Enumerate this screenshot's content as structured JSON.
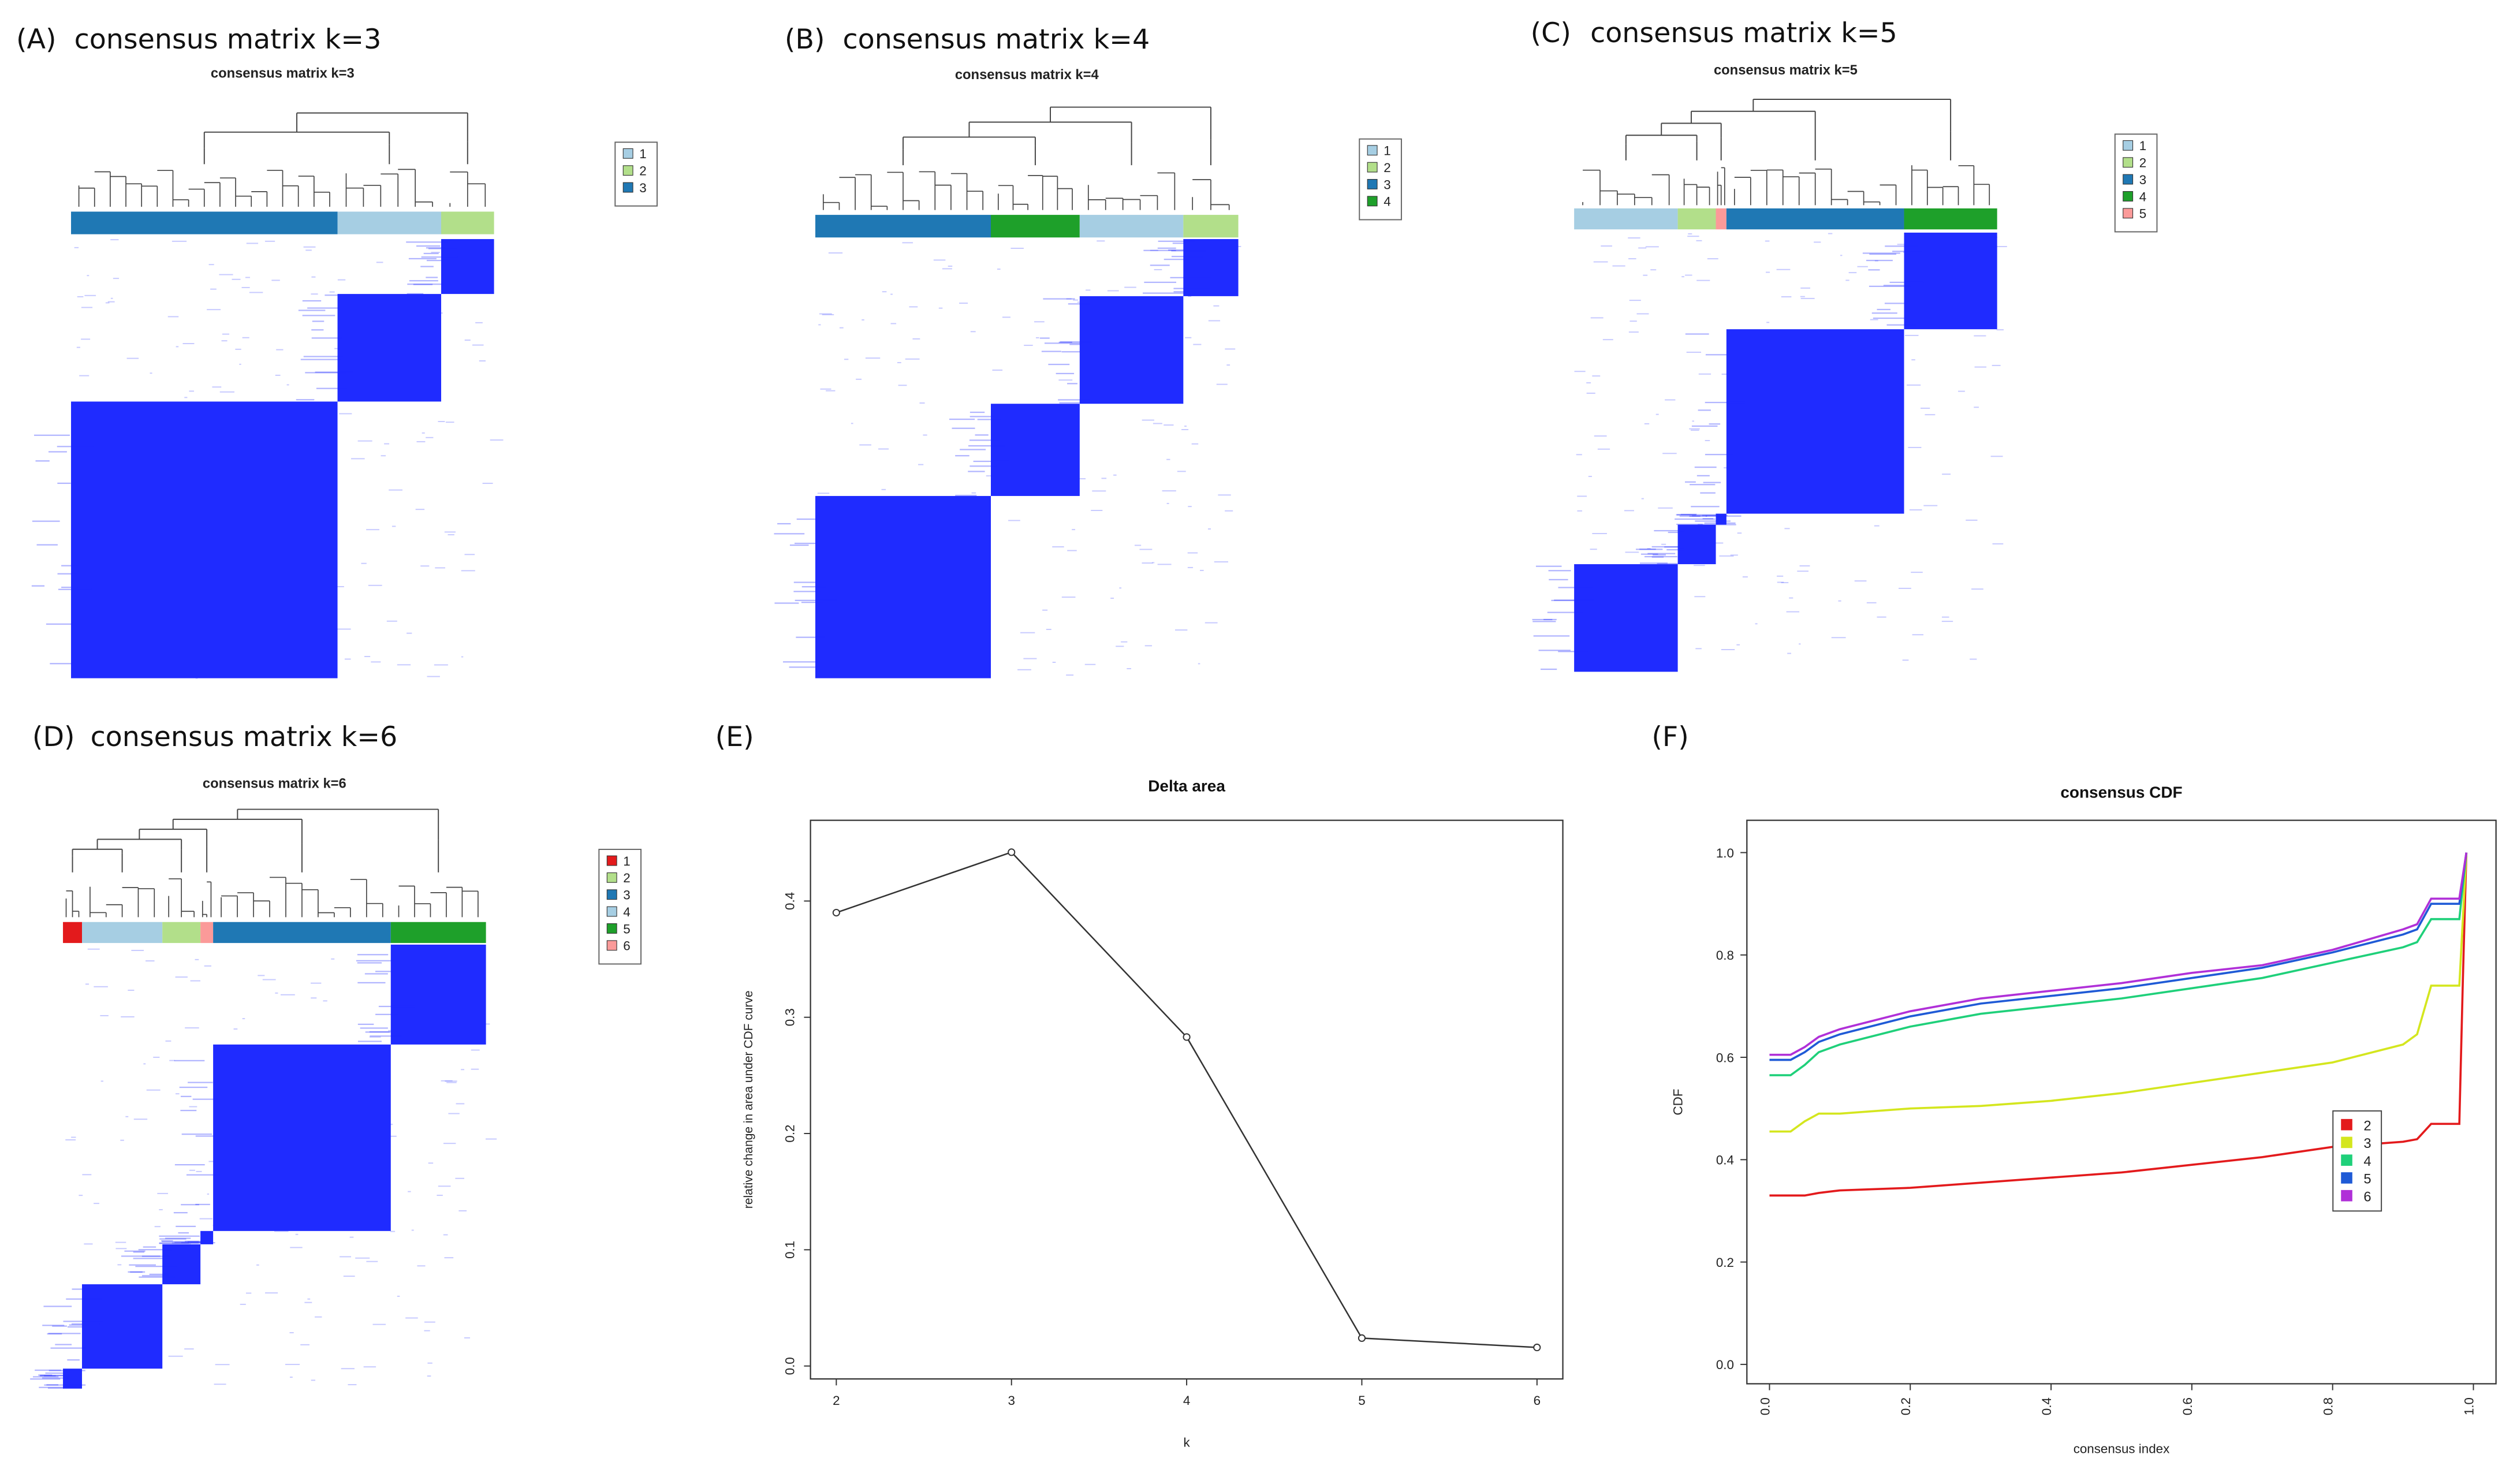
{
  "figure": {
    "panels": {
      "A": {
        "tag": "(A)",
        "heading": "consensus matrix k=3",
        "inner_title": "consensus matrix k=3"
      },
      "B": {
        "tag": "(B)",
        "heading": "consensus matrix k=4",
        "inner_title": "consensus matrix k=4"
      },
      "C": {
        "tag": "(C)",
        "heading": "consensus matrix k=5",
        "inner_title": "consensus matrix k=5"
      },
      "D": {
        "tag": "(D)",
        "heading": "consensus matrix k=6",
        "inner_title": "consensus matrix k=6"
      },
      "E": {
        "tag": "(E)"
      },
      "F": {
        "tag": "(F)"
      }
    }
  },
  "chart_data": [
    {
      "panel": "A",
      "type": "heatmap",
      "title": "consensus matrix k=3",
      "legend": [
        "1",
        "2",
        "3"
      ],
      "colors": [
        "#a6cee3",
        "#b2df8a",
        "#1f78b4"
      ],
      "cluster_bar_order": [
        "3",
        "1",
        "2"
      ],
      "cell_color": "#1f2bff"
    },
    {
      "panel": "B",
      "type": "heatmap",
      "title": "consensus matrix k=4",
      "legend": [
        "1",
        "2",
        "3",
        "4"
      ],
      "colors": [
        "#a6cee3",
        "#b2df8a",
        "#1f78b4",
        "#1ea02a"
      ],
      "cluster_bar_order": [
        "3",
        "4",
        "1",
        "2"
      ],
      "cell_color": "#1f2bff"
    },
    {
      "panel": "C",
      "type": "heatmap",
      "title": "consensus matrix k=5",
      "legend": [
        "1",
        "2",
        "3",
        "4",
        "5"
      ],
      "colors": [
        "#a6cee3",
        "#b2df8a",
        "#1f78b4",
        "#1ea02a",
        "#fb9a99"
      ],
      "cluster_bar_order": [
        "1",
        "2",
        "5",
        "3",
        "4"
      ],
      "cell_color": "#1f2bff"
    },
    {
      "panel": "D",
      "type": "heatmap",
      "title": "consensus matrix k=6",
      "legend": [
        "1",
        "2",
        "3",
        "4",
        "5",
        "6"
      ],
      "colors": [
        "#e31a1c",
        "#b2df8a",
        "#1f78b4",
        "#a6cee3",
        "#1ea02a",
        "#fb9a99"
      ],
      "cluster_bar_order": [
        "1",
        "4",
        "2",
        "6",
        "3",
        "5"
      ],
      "cell_color": "#1f2bff"
    },
    {
      "panel": "E",
      "type": "line",
      "title": "Delta area",
      "xlabel": "k",
      "ylabel": "relative change in area under CDF curve",
      "x": [
        2,
        3,
        4,
        5,
        6
      ],
      "series": [
        {
          "values": [
            0.39,
            0.442,
            0.283,
            0.024,
            0.016
          ]
        }
      ],
      "xlim": [
        2,
        6
      ],
      "ylim": [
        0,
        0.45
      ],
      "xticks": [
        "2",
        "3",
        "4",
        "5",
        "6"
      ],
      "yticks": [
        "0.0",
        "0.1",
        "0.2",
        "0.3",
        "0.4"
      ],
      "grid": false
    },
    {
      "panel": "F",
      "type": "line",
      "title": "consensus CDF",
      "xlabel": "consensus index",
      "ylabel": "CDF",
      "xlim": [
        0,
        1
      ],
      "ylim": [
        0,
        1
      ],
      "xticks": [
        "0.0",
        "0.2",
        "0.4",
        "0.6",
        "0.8",
        "1.0"
      ],
      "yticks": [
        "0.0",
        "0.2",
        "0.4",
        "0.6",
        "0.8",
        "1.0"
      ],
      "legend_placement": "bottom-right",
      "grid": false,
      "series": [
        {
          "name": "2",
          "color": "#e31a1c",
          "points": [
            [
              0,
              0.33
            ],
            [
              0.02,
              0.33
            ],
            [
              0.05,
              0.33
            ],
            [
              0.07,
              0.335
            ],
            [
              0.1,
              0.34
            ],
            [
              0.2,
              0.345
            ],
            [
              0.3,
              0.355
            ],
            [
              0.4,
              0.365
            ],
            [
              0.5,
              0.375
            ],
            [
              0.6,
              0.39
            ],
            [
              0.7,
              0.405
            ],
            [
              0.8,
              0.425
            ],
            [
              0.9,
              0.435
            ],
            [
              0.92,
              0.44
            ],
            [
              0.94,
              0.47
            ],
            [
              0.98,
              0.47
            ],
            [
              0.985,
              0.75
            ],
            [
              0.99,
              1.0
            ]
          ]
        },
        {
          "name": "3",
          "color": "#d4e61e",
          "points": [
            [
              0,
              0.455
            ],
            [
              0.03,
              0.455
            ],
            [
              0.05,
              0.475
            ],
            [
              0.07,
              0.49
            ],
            [
              0.1,
              0.49
            ],
            [
              0.2,
              0.5
            ],
            [
              0.3,
              0.505
            ],
            [
              0.4,
              0.515
            ],
            [
              0.5,
              0.53
            ],
            [
              0.6,
              0.55
            ],
            [
              0.7,
              0.57
            ],
            [
              0.8,
              0.59
            ],
            [
              0.9,
              0.625
            ],
            [
              0.92,
              0.645
            ],
            [
              0.94,
              0.74
            ],
            [
              0.98,
              0.74
            ],
            [
              0.99,
              1.0
            ]
          ]
        },
        {
          "name": "4",
          "color": "#1fd07a",
          "points": [
            [
              0,
              0.565
            ],
            [
              0.03,
              0.565
            ],
            [
              0.05,
              0.585
            ],
            [
              0.07,
              0.61
            ],
            [
              0.1,
              0.625
            ],
            [
              0.2,
              0.66
            ],
            [
              0.3,
              0.685
            ],
            [
              0.4,
              0.7
            ],
            [
              0.5,
              0.715
            ],
            [
              0.6,
              0.735
            ],
            [
              0.7,
              0.755
            ],
            [
              0.8,
              0.785
            ],
            [
              0.9,
              0.815
            ],
            [
              0.92,
              0.825
            ],
            [
              0.94,
              0.87
            ],
            [
              0.98,
              0.87
            ],
            [
              0.99,
              1.0
            ]
          ]
        },
        {
          "name": "5",
          "color": "#1f5ad6",
          "points": [
            [
              0,
              0.595
            ],
            [
              0.03,
              0.595
            ],
            [
              0.05,
              0.61
            ],
            [
              0.07,
              0.63
            ],
            [
              0.1,
              0.645
            ],
            [
              0.2,
              0.68
            ],
            [
              0.3,
              0.705
            ],
            [
              0.4,
              0.72
            ],
            [
              0.5,
              0.735
            ],
            [
              0.6,
              0.755
            ],
            [
              0.7,
              0.775
            ],
            [
              0.8,
              0.805
            ],
            [
              0.9,
              0.84
            ],
            [
              0.92,
              0.85
            ],
            [
              0.94,
              0.9
            ],
            [
              0.98,
              0.9
            ],
            [
              0.99,
              1.0
            ]
          ]
        },
        {
          "name": "6",
          "color": "#b030d8",
          "points": [
            [
              0,
              0.605
            ],
            [
              0.03,
              0.605
            ],
            [
              0.05,
              0.62
            ],
            [
              0.07,
              0.64
            ],
            [
              0.1,
              0.655
            ],
            [
              0.2,
              0.69
            ],
            [
              0.3,
              0.715
            ],
            [
              0.4,
              0.73
            ],
            [
              0.5,
              0.745
            ],
            [
              0.6,
              0.765
            ],
            [
              0.7,
              0.78
            ],
            [
              0.8,
              0.81
            ],
            [
              0.9,
              0.85
            ],
            [
              0.92,
              0.86
            ],
            [
              0.94,
              0.91
            ],
            [
              0.98,
              0.91
            ],
            [
              0.99,
              1.0
            ]
          ]
        }
      ]
    }
  ]
}
